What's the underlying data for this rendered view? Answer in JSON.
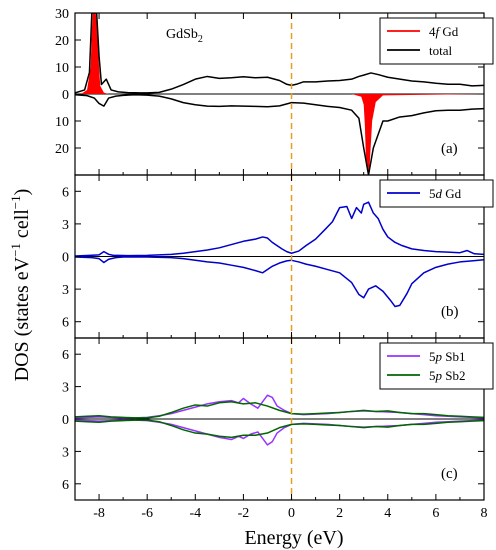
{
  "figure": {
    "ylabel": "DOS (states eV",
    "ylabel_sup1": "−1",
    "ylabel_mid": " cell",
    "ylabel_sup2": "−1",
    "ylabel_end": ")",
    "xlabel": "Energy (eV)",
    "colors": {
      "gd4f": "#ff0000",
      "total": "#000000",
      "gd5d": "#0000cc",
      "sb1": "#9933ff",
      "sb2": "#006600",
      "fermi": "#e6a020"
    }
  },
  "chart_data": [
    {
      "type": "area",
      "panel": "(a)",
      "annotation": "GdSb",
      "annotation_sub": "2",
      "xlim": [
        -9,
        8
      ],
      "ylim": [
        -30,
        30
      ],
      "yaxis_note": "bottom half is spin-down plotted as negative; tick labels shown as magnitudes",
      "xticks": [
        -8,
        -6,
        -4,
        -2,
        0,
        2,
        4,
        6,
        8
      ],
      "xticklabels": [
        "-8",
        "-6",
        "-4",
        "-2",
        "0",
        "2",
        "4",
        "6",
        "8"
      ],
      "yticks": [
        30,
        20,
        10,
        0,
        -10,
        -20
      ],
      "yticklabels": [
        "30",
        "20",
        "10",
        "0",
        "10",
        "20"
      ],
      "fermi_level": 0,
      "legend_placement": "top-right",
      "series": [
        {
          "name_prefix": "4",
          "name_italic": "f",
          "name_suffix": " Gd",
          "style": "filled",
          "color": "#ff0000",
          "x": [
            -9,
            -8.7,
            -8.5,
            -8.35,
            -8.3,
            -8.25,
            -8.15,
            -8.05,
            -8.0,
            -7.95,
            -7.8,
            -7.6,
            -7,
            8
          ],
          "y": [
            0,
            0.3,
            1.5,
            10,
            24,
            31,
            31,
            22,
            10,
            3,
            0.5,
            0,
            0,
            0
          ]
        },
        {
          "name_prefix": "4",
          "name_italic": "f",
          "name_suffix": " Gd",
          "style": "filled",
          "color": "#ff0000",
          "legend": false,
          "x": [
            -9,
            2.5,
            2.9,
            3.0,
            3.05,
            3.1,
            3.2,
            3.25,
            3.35,
            3.5,
            3.8,
            8
          ],
          "y": [
            0,
            0,
            -1,
            -4,
            -12,
            -26,
            -30,
            -26,
            -10,
            -3,
            -0.5,
            0
          ]
        },
        {
          "name": "total",
          "style": "line",
          "color": "#000000",
          "x": [
            -9,
            -8.6,
            -8.4,
            -8.3,
            -8.2,
            -8.1,
            -8.0,
            -7.9,
            -7.7,
            -7.5,
            -7.2,
            -6.8,
            -6.3,
            -6.0,
            -5.5,
            -5.0,
            -4.5,
            -4.0,
            -3.5,
            -3.0,
            -2.5,
            -2.0,
            -1.5,
            -1.0,
            -0.5,
            -0.2,
            0.0,
            0.2,
            0.5,
            1.0,
            1.5,
            2.0,
            2.5,
            2.8,
            3.0,
            3.3,
            3.6,
            4.0,
            4.5,
            5.0,
            5.5,
            6.0,
            6.5,
            7.0,
            7.5,
            8.0
          ],
          "y": [
            0.4,
            1.5,
            8,
            30,
            30,
            30,
            14,
            3.5,
            5.5,
            1.5,
            0.8,
            0.5,
            0.4,
            0.4,
            0.6,
            1.8,
            3.5,
            5.5,
            6.5,
            5.8,
            6.0,
            6.4,
            6.0,
            6.2,
            5.0,
            3.6,
            3.2,
            3.6,
            4.5,
            4.5,
            4.8,
            5.0,
            5.5,
            6.5,
            7.0,
            7.8,
            7.2,
            6.2,
            5.5,
            4.8,
            4.5,
            4.0,
            3.6,
            3.6,
            3.0,
            3.2
          ]
        },
        {
          "name": "total",
          "style": "line",
          "color": "#000000",
          "legend": false,
          "x": [
            -9,
            -8.5,
            -8.2,
            -8.0,
            -7.8,
            -7.6,
            -7.3,
            -7.0,
            -6.5,
            -6.0,
            -5.5,
            -5.0,
            -4.5,
            -4.0,
            -3.5,
            -3.0,
            -2.5,
            -2.0,
            -1.5,
            -1.0,
            -0.5,
            0.0,
            0.5,
            1.0,
            1.5,
            2.0,
            2.5,
            2.8,
            3.0,
            3.2,
            3.4,
            3.8,
            4.0,
            4.5,
            5.0,
            5.5,
            6.0,
            6.5,
            7.0,
            7.5,
            8.0
          ],
          "y": [
            -0.3,
            -0.6,
            -1.5,
            -3.5,
            -4.5,
            -1.5,
            -0.8,
            -0.5,
            -0.3,
            -0.4,
            -0.8,
            -1.8,
            -3.2,
            -4.0,
            -4.5,
            -4.6,
            -4.4,
            -4.5,
            -4.6,
            -4.7,
            -4.4,
            -3.2,
            -3.4,
            -4.0,
            -4.6,
            -5.0,
            -6.0,
            -9.0,
            -20,
            -30,
            -20,
            -10.0,
            -10.0,
            -8.5,
            -8.0,
            -7.0,
            -6.2,
            -6.0,
            -6.0,
            -5.6,
            -5.4
          ]
        }
      ]
    },
    {
      "type": "line",
      "panel": "(b)",
      "xlim": [
        -9,
        8
      ],
      "ylim": [
        -7.5,
        7.5
      ],
      "yaxis_note": "bottom half is spin-down plotted as negative; tick labels shown as magnitudes",
      "xticks": [
        -8,
        -6,
        -4,
        -2,
        0,
        2,
        4,
        6,
        8
      ],
      "yticks": [
        6,
        3,
        0,
        -3,
        -6
      ],
      "yticklabels": [
        "6",
        "3",
        "0",
        "3",
        "6"
      ],
      "fermi_level": 0,
      "legend_placement": "top-right",
      "series": [
        {
          "name_prefix": "5",
          "name_italic": "d",
          "name_suffix": " Gd",
          "color": "#0000cc",
          "x": [
            -9,
            -8.4,
            -8.0,
            -7.8,
            -7.6,
            -7.4,
            -7.2,
            -6.8,
            -6.0,
            -5.0,
            -4.5,
            -4.0,
            -3.5,
            -3.0,
            -2.5,
            -2.0,
            -1.5,
            -1.2,
            -1.0,
            -0.8,
            -0.6,
            -0.4,
            -0.2,
            0.0,
            0.3,
            0.6,
            1.0,
            1.4,
            1.7,
            2.0,
            2.3,
            2.5,
            2.7,
            2.9,
            3.0,
            3.2,
            3.4,
            3.6,
            3.8,
            4.0,
            4.3,
            4.6,
            5.0,
            5.5,
            6.0,
            6.5,
            7.0,
            7.3,
            7.6,
            8.0
          ],
          "y": [
            0.05,
            0.1,
            0.15,
            0.45,
            0.2,
            0.1,
            0.1,
            0.08,
            0.1,
            0.2,
            0.3,
            0.45,
            0.6,
            0.8,
            1.1,
            1.4,
            1.6,
            1.8,
            1.7,
            1.3,
            1.0,
            0.7,
            0.45,
            0.3,
            0.5,
            1.0,
            1.6,
            2.5,
            3.2,
            4.5,
            4.6,
            3.5,
            4.5,
            4.0,
            4.8,
            5.0,
            4.0,
            3.5,
            2.5,
            1.8,
            1.3,
            1.0,
            0.7,
            0.55,
            0.45,
            0.4,
            0.35,
            0.55,
            0.25,
            0.2
          ]
        },
        {
          "name_prefix": "5",
          "name_italic": "d",
          "name_suffix": " Gd",
          "color": "#0000cc",
          "legend": false,
          "x": [
            -9,
            -8.3,
            -8.0,
            -7.8,
            -7.6,
            -7.3,
            -7.0,
            -6.0,
            -5.0,
            -4.5,
            -4.0,
            -3.5,
            -3.0,
            -2.5,
            -2.0,
            -1.5,
            -1.2,
            -1.0,
            -0.8,
            -0.5,
            -0.2,
            0.0,
            0.3,
            0.6,
            1.0,
            1.5,
            2.0,
            2.5,
            2.8,
            3.0,
            3.2,
            3.5,
            3.8,
            4.1,
            4.3,
            4.5,
            4.8,
            5.0,
            5.5,
            6.0,
            6.5,
            7.0,
            7.5,
            8.0
          ],
          "y": [
            -0.05,
            -0.1,
            -0.2,
            -0.55,
            -0.25,
            -0.1,
            -0.05,
            -0.05,
            -0.1,
            -0.2,
            -0.35,
            -0.5,
            -0.6,
            -0.8,
            -1.0,
            -1.3,
            -1.5,
            -1.2,
            -0.9,
            -0.6,
            -0.4,
            -0.35,
            -0.5,
            -0.7,
            -0.9,
            -1.2,
            -1.5,
            -2.4,
            -3.5,
            -3.8,
            -3.0,
            -2.7,
            -3.2,
            -4.0,
            -4.6,
            -4.5,
            -3.4,
            -2.5,
            -1.5,
            -1.0,
            -0.7,
            -0.5,
            -0.4,
            -0.3
          ]
        }
      ]
    },
    {
      "type": "line",
      "panel": "(c)",
      "xlim": [
        -9,
        8
      ],
      "ylim": [
        -7.5,
        7.5
      ],
      "yaxis_note": "bottom half is spin-down plotted as negative; tick labels shown as magnitudes",
      "xticks": [
        -8,
        -6,
        -4,
        -2,
        0,
        2,
        4,
        6,
        8
      ],
      "yticks": [
        6,
        3,
        0,
        -3,
        -6
      ],
      "yticklabels": [
        "6",
        "3",
        "0",
        "3",
        "6"
      ],
      "fermi_level": 0,
      "legend_placement": "top-right",
      "series": [
        {
          "name_prefix": "5",
          "name_italic": "p",
          "name_suffix": " Sb1",
          "color": "#9933ff",
          "x": [
            -9,
            -8.5,
            -8.0,
            -7.5,
            -7.0,
            -6.5,
            -6.0,
            -5.5,
            -5.0,
            -4.5,
            -4.0,
            -3.5,
            -3.0,
            -2.5,
            -2.2,
            -2.0,
            -1.7,
            -1.4,
            -1.2,
            -1.0,
            -0.8,
            -0.6,
            -0.3,
            0.0,
            0.5,
            1.0,
            1.5,
            2.0,
            2.5,
            3.0,
            3.5,
            4.0,
            4.5,
            5.0,
            5.5,
            6.0,
            6.5,
            7.0,
            7.5,
            8.0
          ],
          "y": [
            0.1,
            0.15,
            0.2,
            0.15,
            0.1,
            0.1,
            0.15,
            0.3,
            0.5,
            0.8,
            1.1,
            1.4,
            1.6,
            1.7,
            1.5,
            1.9,
            1.4,
            1.0,
            1.6,
            2.2,
            2.0,
            1.2,
            0.8,
            0.5,
            0.4,
            0.45,
            0.5,
            0.6,
            0.7,
            0.75,
            0.7,
            0.65,
            0.6,
            0.5,
            0.4,
            0.3,
            0.25,
            0.2,
            0.15,
            0.1
          ]
        },
        {
          "name_prefix": "5",
          "name_italic": "p",
          "name_suffix": " Sb1",
          "color": "#9933ff",
          "legend": false,
          "x": [
            -9,
            -8.5,
            -8.0,
            -7.5,
            -7.0,
            -6.5,
            -6.0,
            -5.5,
            -5.0,
            -4.5,
            -4.0,
            -3.5,
            -3.0,
            -2.5,
            -2.2,
            -2.0,
            -1.7,
            -1.4,
            -1.2,
            -1.0,
            -0.8,
            -0.6,
            -0.3,
            0.0,
            0.5,
            1.0,
            1.5,
            2.0,
            2.5,
            3.0,
            3.5,
            4.0,
            4.5,
            5.0,
            5.5,
            6.0,
            6.5,
            7.0,
            7.5,
            8.0
          ],
          "y": [
            -0.1,
            -0.15,
            -0.2,
            -0.15,
            -0.1,
            -0.1,
            -0.15,
            -0.3,
            -0.5,
            -0.8,
            -1.1,
            -1.4,
            -1.7,
            -1.9,
            -1.6,
            -1.8,
            -1.4,
            -1.2,
            -1.8,
            -2.4,
            -2.1,
            -1.3,
            -0.8,
            -0.5,
            -0.4,
            -0.45,
            -0.5,
            -0.6,
            -0.7,
            -0.75,
            -0.7,
            -0.65,
            -0.6,
            -0.5,
            -0.4,
            -0.3,
            -0.25,
            -0.2,
            -0.15,
            -0.1
          ]
        },
        {
          "name_prefix": "5",
          "name_italic": "p",
          "name_suffix": " Sb2",
          "color": "#006600",
          "x": [
            -9,
            -8.5,
            -8.0,
            -7.5,
            -7.0,
            -6.5,
            -6.0,
            -5.5,
            -5.0,
            -4.5,
            -4.0,
            -3.5,
            -3.0,
            -2.5,
            -2.0,
            -1.5,
            -1.0,
            -0.5,
            0.0,
            0.5,
            1.0,
            1.5,
            2.0,
            2.5,
            3.0,
            3.5,
            4.0,
            4.5,
            5.0,
            5.5,
            6.0,
            6.5,
            7.0,
            7.5,
            8.0
          ],
          "y": [
            0.2,
            0.25,
            0.3,
            0.2,
            0.15,
            0.1,
            0.1,
            0.25,
            0.6,
            1.0,
            1.3,
            1.2,
            1.5,
            1.6,
            1.4,
            1.5,
            1.2,
            0.8,
            0.5,
            0.45,
            0.5,
            0.55,
            0.6,
            0.7,
            0.8,
            0.7,
            0.75,
            0.6,
            0.5,
            0.5,
            0.4,
            0.3,
            0.25,
            0.2,
            0.15
          ]
        },
        {
          "name_prefix": "5",
          "name_italic": "p",
          "name_suffix": " Sb2",
          "color": "#006600",
          "legend": false,
          "x": [
            -9,
            -8.5,
            -8.0,
            -7.5,
            -7.0,
            -6.5,
            -6.0,
            -5.5,
            -5.0,
            -4.5,
            -4.0,
            -3.5,
            -3.0,
            -2.5,
            -2.0,
            -1.5,
            -1.0,
            -0.5,
            0.0,
            0.5,
            1.0,
            1.5,
            2.0,
            2.5,
            3.0,
            3.5,
            4.0,
            4.5,
            5.0,
            5.5,
            6.0,
            6.5,
            7.0,
            7.5,
            8.0
          ],
          "y": [
            -0.2,
            -0.25,
            -0.3,
            -0.2,
            -0.15,
            -0.1,
            -0.1,
            -0.25,
            -0.6,
            -1.0,
            -1.3,
            -1.4,
            -1.6,
            -1.7,
            -1.5,
            -1.5,
            -1.3,
            -0.8,
            -0.5,
            -0.45,
            -0.5,
            -0.55,
            -0.6,
            -0.7,
            -0.8,
            -0.7,
            -0.75,
            -0.6,
            -0.5,
            -0.5,
            -0.4,
            -0.3,
            -0.25,
            -0.2,
            -0.15
          ]
        }
      ]
    }
  ]
}
